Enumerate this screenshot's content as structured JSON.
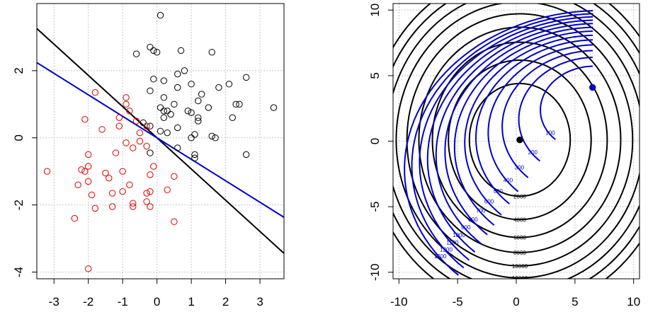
{
  "chart_data": [
    {
      "type": "scatter",
      "title": "",
      "xlabel": "",
      "ylabel": "",
      "xlim": [
        -3.5,
        3.7
      ],
      "ylim": [
        -4.2,
        4.0
      ],
      "grid": true,
      "x_ticks": [
        "-3",
        "-2",
        "-1",
        "0",
        "1",
        "2",
        "3"
      ],
      "y_ticks": [
        "-4",
        "-2",
        "0",
        "2"
      ],
      "colors": {
        "class_a": "#000000",
        "class_b": "#dd0000",
        "line_a": "#000000",
        "line_b": "#0000cc",
        "grid": "#c8c8c8"
      },
      "series": [
        {
          "marker": "open-circle",
          "color": "#000000",
          "points": [
            [
              0.1,
              3.65
            ],
            [
              -0.2,
              2.7
            ],
            [
              -0.6,
              2.5
            ],
            [
              -0.1,
              2.6
            ],
            [
              0.0,
              2.55
            ],
            [
              0.7,
              2.6
            ],
            [
              1.6,
              2.55
            ],
            [
              0.6,
              1.9
            ],
            [
              0.8,
              2.0
            ],
            [
              -0.1,
              1.75
            ],
            [
              0.2,
              1.7
            ],
            [
              1.0,
              1.6
            ],
            [
              1.3,
              1.3
            ],
            [
              1.8,
              1.5
            ],
            [
              2.1,
              1.6
            ],
            [
              2.6,
              1.8
            ],
            [
              0.6,
              1.5
            ],
            [
              -0.2,
              1.4
            ],
            [
              0.2,
              1.2
            ],
            [
              1.2,
              1.1
            ],
            [
              1.5,
              0.9
            ],
            [
              0.5,
              1.0
            ],
            [
              0.9,
              0.8
            ],
            [
              0.3,
              0.8
            ],
            [
              0.1,
              0.9
            ],
            [
              2.3,
              1.0
            ],
            [
              2.4,
              1.0
            ],
            [
              3.4,
              0.9
            ],
            [
              0.2,
              0.6
            ],
            [
              0.4,
              0.7
            ],
            [
              1.0,
              0.75
            ],
            [
              1.2,
              0.6
            ],
            [
              1.2,
              0.5
            ],
            [
              1.6,
              0.05
            ],
            [
              1.7,
              0.0
            ],
            [
              2.2,
              0.6
            ],
            [
              -0.4,
              0.45
            ],
            [
              -0.2,
              0.35
            ],
            [
              0.1,
              0.2
            ],
            [
              0.3,
              0.15
            ],
            [
              0.6,
              0.3
            ],
            [
              1.0,
              0.0
            ],
            [
              1.1,
              0.1
            ],
            [
              2.6,
              -0.5
            ],
            [
              0.6,
              -0.3
            ],
            [
              1.1,
              -0.6
            ],
            [
              1.1,
              -0.5
            ],
            [
              -0.2,
              -0.45
            ],
            [
              0.2,
              0.8
            ]
          ]
        },
        {
          "marker": "open-circle",
          "color": "#dd0000",
          "points": [
            [
              -3.2,
              -1.0
            ],
            [
              -1.8,
              1.35
            ],
            [
              -0.9,
              1.2
            ],
            [
              -0.9,
              1.0
            ],
            [
              -0.8,
              0.8
            ],
            [
              -2.1,
              0.55
            ],
            [
              -1.1,
              0.6
            ],
            [
              -1.6,
              0.25
            ],
            [
              -1.1,
              0.35
            ],
            [
              -0.6,
              0.5
            ],
            [
              -0.3,
              0.35
            ],
            [
              -0.5,
              0.15
            ],
            [
              -0.9,
              -0.15
            ],
            [
              -0.5,
              -0.1
            ],
            [
              -0.7,
              -0.3
            ],
            [
              -0.3,
              -0.25
            ],
            [
              -1.2,
              -0.45
            ],
            [
              -2.0,
              -0.5
            ],
            [
              -2.2,
              -0.95
            ],
            [
              -2.0,
              -0.85
            ],
            [
              -2.1,
              -1.0
            ],
            [
              -1.5,
              -1.05
            ],
            [
              -1.0,
              -1.0
            ],
            [
              -0.2,
              -1.1
            ],
            [
              -0.1,
              -0.85
            ],
            [
              0.5,
              -1.15
            ],
            [
              -1.4,
              -1.2
            ],
            [
              -2.3,
              -1.4
            ],
            [
              -0.8,
              -1.4
            ],
            [
              -2.0,
              -1.3
            ],
            [
              -1.3,
              -1.65
            ],
            [
              -1.9,
              -1.7
            ],
            [
              -1.0,
              -1.6
            ],
            [
              -0.3,
              -1.65
            ],
            [
              -0.2,
              -1.6
            ],
            [
              0.3,
              -1.55
            ],
            [
              -0.7,
              -1.95
            ],
            [
              -0.7,
              -2.05
            ],
            [
              -0.3,
              -1.9
            ],
            [
              -1.8,
              -2.1
            ],
            [
              -1.3,
              -2.05
            ],
            [
              -0.2,
              -2.05
            ],
            [
              -2.4,
              -2.4
            ],
            [
              0.5,
              -2.5
            ],
            [
              -2.0,
              -3.9
            ]
          ]
        }
      ],
      "lines": [
        {
          "color": "#000000",
          "intercept": 0.0,
          "slope": -0.93
        },
        {
          "color": "#0000cc",
          "intercept": 0.0,
          "slope": -0.64
        }
      ]
    },
    {
      "type": "contour",
      "title": "",
      "xlabel": "",
      "ylabel": "",
      "xlim": [
        -10.5,
        10.5
      ],
      "ylim": [
        -10.5,
        10.5
      ],
      "grid": true,
      "x_ticks": [
        "-10",
        "-5",
        "0",
        "5",
        "10"
      ],
      "y_ticks": [
        "-10",
        "-5",
        "0",
        "5",
        "10"
      ],
      "colors": {
        "black_set": "#000000",
        "blue_set": "#0000cc",
        "grid": "#c8c8c8"
      },
      "contour_sets": [
        {
          "name": "",
          "color": "#000000",
          "center": [
            0.3,
            0.1
          ],
          "levels": [
            2000,
            4000,
            6000,
            8000,
            10000,
            12000,
            14000,
            16000,
            18000
          ],
          "level_labels": [
            "2000",
            "4000",
            "6000",
            "8000",
            "10000",
            "12000",
            "14000",
            "16000",
            "18000"
          ]
        },
        {
          "name": "",
          "color": "#0000cc",
          "center": [
            6.5,
            4.1
          ],
          "levels": [
            100,
            200,
            300,
            400,
            500,
            600,
            700,
            800,
            900,
            1000,
            1100,
            1200,
            1300
          ],
          "level_labels": [
            "100",
            "200",
            "300",
            "400",
            "500",
            "600",
            "700",
            "800",
            "900",
            "1000",
            "1100",
            "1200",
            "1300"
          ]
        }
      ],
      "points": [
        {
          "x": 0.3,
          "y": 0.1,
          "color": "#000000"
        },
        {
          "x": 6.5,
          "y": 4.1,
          "color": "#0000cc"
        }
      ]
    }
  ]
}
